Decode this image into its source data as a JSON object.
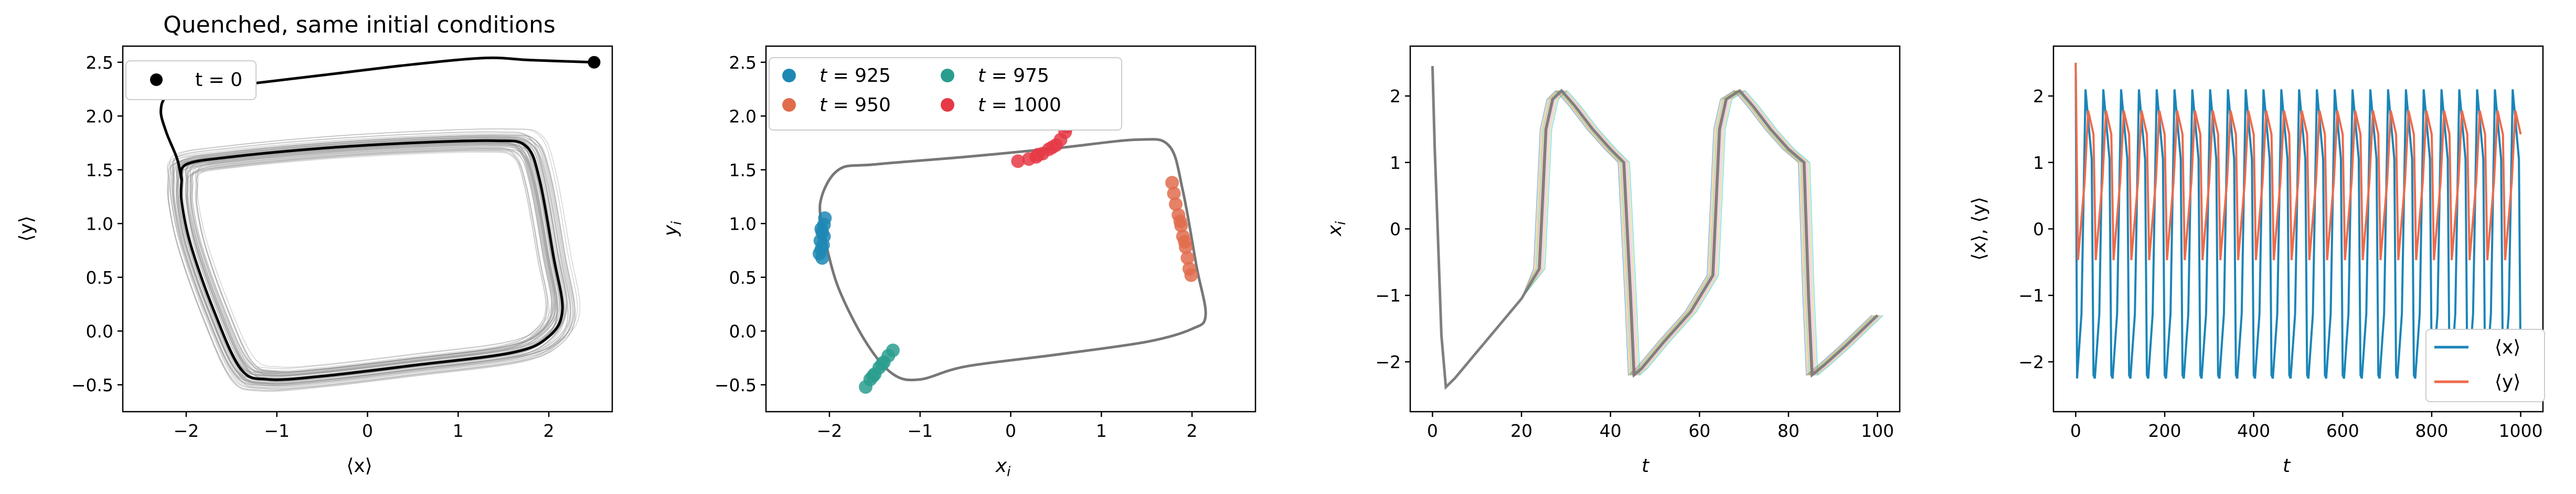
{
  "figure": {
    "panels": 4
  },
  "chart_data": [
    {
      "type": "line",
      "title": "Quenched, same initial conditions",
      "xlabel": "⟨x⟩",
      "ylabel": "⟨y⟩",
      "xlim": [
        -2.7,
        2.7
      ],
      "ylim": [
        -0.75,
        2.65
      ],
      "xticks": [
        -2,
        -1,
        0,
        1,
        2
      ],
      "yticks": [
        -0.5,
        0.0,
        0.5,
        1.0,
        1.5,
        2.0,
        2.5
      ],
      "legend": {
        "position": "top-left",
        "entries": [
          "t = 0"
        ]
      },
      "start_point": {
        "x": 2.5,
        "y": 2.5,
        "label": "t = 0",
        "color": "#000000"
      },
      "mean_trajectory": {
        "color": "#000000",
        "transient": [
          [
            2.5,
            2.5
          ],
          [
            1.8,
            2.52
          ],
          [
            1.3,
            2.54
          ],
          [
            0.5,
            2.48
          ],
          [
            -0.5,
            2.38
          ],
          [
            -1.3,
            2.3
          ],
          [
            -1.9,
            2.24
          ],
          [
            -2.2,
            2.19
          ],
          [
            -2.28,
            2.05
          ],
          [
            -2.22,
            1.85
          ],
          [
            -2.1,
            1.6
          ],
          [
            -2.05,
            1.4
          ]
        ],
        "cycle": [
          [
            -2.05,
            1.4
          ],
          [
            -2.0,
            1.55
          ],
          [
            -1.5,
            1.62
          ],
          [
            -0.5,
            1.7
          ],
          [
            0.5,
            1.75
          ],
          [
            1.4,
            1.77
          ],
          [
            1.75,
            1.72
          ],
          [
            1.9,
            1.4
          ],
          [
            2.05,
            0.7
          ],
          [
            2.15,
            0.2
          ],
          [
            2.0,
            -0.05
          ],
          [
            1.6,
            -0.2
          ],
          [
            0.5,
            -0.32
          ],
          [
            -0.5,
            -0.42
          ],
          [
            -1.1,
            -0.45
          ],
          [
            -1.4,
            -0.35
          ],
          [
            -1.7,
            0.2
          ],
          [
            -1.95,
            0.8
          ],
          [
            -2.05,
            1.2
          ],
          [
            -2.05,
            1.4
          ]
        ]
      },
      "ensemble_color": "#999999"
    },
    {
      "type": "scatter",
      "title": "",
      "xlabel": "x_i",
      "ylabel": "y_i",
      "xlim": [
        -2.7,
        2.7
      ],
      "ylim": [
        -0.75,
        2.65
      ],
      "xticks": [
        -2,
        -1,
        0,
        1,
        2
      ],
      "yticks": [
        -0.5,
        0.0,
        0.5,
        1.0,
        1.5,
        2.0,
        2.5
      ],
      "legend": {
        "position": "top-left",
        "columns": 2
      },
      "limit_cycle": {
        "color": "#777777",
        "points": [
          [
            -2.05,
            0.85
          ],
          [
            -2.1,
            1.2
          ],
          [
            -1.9,
            1.5
          ],
          [
            -1.5,
            1.55
          ],
          [
            -0.5,
            1.62
          ],
          [
            0.5,
            1.7
          ],
          [
            1.4,
            1.78
          ],
          [
            1.75,
            1.72
          ],
          [
            1.9,
            1.3
          ],
          [
            2.05,
            0.6
          ],
          [
            2.15,
            0.15
          ],
          [
            2.0,
            0.02
          ],
          [
            1.5,
            -0.1
          ],
          [
            0.5,
            -0.22
          ],
          [
            -0.5,
            -0.33
          ],
          [
            -1.0,
            -0.45
          ],
          [
            -1.3,
            -0.4
          ],
          [
            -1.6,
            -0.1
          ],
          [
            -1.9,
            0.4
          ],
          [
            -2.05,
            0.85
          ]
        ]
      },
      "series": [
        {
          "name": "t = 925",
          "label_t": "t",
          "label_val": "= 925",
          "color": "#1f87b4",
          "points": [
            [
              -2.08,
              0.68
            ],
            [
              -2.09,
              0.76
            ],
            [
              -2.1,
              0.84
            ],
            [
              -2.08,
              0.92
            ],
            [
              -2.06,
              0.99
            ],
            [
              -2.05,
              1.05
            ],
            [
              -2.11,
              0.72
            ],
            [
              -2.07,
              0.8
            ],
            [
              -2.09,
              0.95
            ],
            [
              -2.06,
              0.88
            ]
          ]
        },
        {
          "name": "t = 950",
          "label_t": "t",
          "label_val": "= 950",
          "color": "#e06c4c",
          "points": [
            [
              1.78,
              1.38
            ],
            [
              1.8,
              1.28
            ],
            [
              1.82,
              1.18
            ],
            [
              1.85,
              1.08
            ],
            [
              1.88,
              0.98
            ],
            [
              1.9,
              0.88
            ],
            [
              1.93,
              0.78
            ],
            [
              1.95,
              0.68
            ],
            [
              1.97,
              0.58
            ],
            [
              1.99,
              0.52
            ],
            [
              1.87,
              1.02
            ],
            [
              1.92,
              0.83
            ]
          ]
        },
        {
          "name": "t = 975",
          "label_t": "t",
          "label_val": "= 975",
          "color": "#2a9d8f",
          "points": [
            [
              -1.6,
              -0.52
            ],
            [
              -1.55,
              -0.45
            ],
            [
              -1.5,
              -0.4
            ],
            [
              -1.45,
              -0.34
            ],
            [
              -1.4,
              -0.29
            ],
            [
              -1.35,
              -0.23
            ],
            [
              -1.3,
              -0.18
            ],
            [
              -1.52,
              -0.42
            ],
            [
              -1.42,
              -0.31
            ]
          ]
        },
        {
          "name": "t = 1000",
          "label_t": "t",
          "label_val": "= 1000",
          "color": "#e63946",
          "points": [
            [
              0.08,
              1.58
            ],
            [
              0.2,
              1.6
            ],
            [
              0.28,
              1.62
            ],
            [
              0.35,
              1.65
            ],
            [
              0.42,
              1.69
            ],
            [
              0.5,
              1.73
            ],
            [
              0.55,
              1.78
            ],
            [
              0.6,
              1.85
            ],
            [
              0.62,
              1.9
            ],
            [
              0.3,
              1.64
            ],
            [
              0.46,
              1.71
            ]
          ]
        }
      ]
    },
    {
      "type": "line",
      "title": "",
      "xlabel": "t",
      "ylabel": "x_i",
      "xlim": [
        -5,
        105
      ],
      "ylim": [
        -2.75,
        2.75
      ],
      "xticks": [
        0,
        20,
        40,
        60,
        80,
        100
      ],
      "yticks": [
        -2,
        -1,
        0,
        1,
        2
      ],
      "mean_series": {
        "color": "#7f7f7f",
        "points": [
          [
            0,
            2.45
          ],
          [
            0.5,
            1.2
          ],
          [
            1,
            0.3
          ],
          [
            2,
            -1.6
          ],
          [
            3,
            -2.38
          ],
          [
            5,
            -2.25
          ],
          [
            10,
            -1.85
          ],
          [
            15,
            -1.45
          ],
          [
            20,
            -1.05
          ],
          [
            24,
            -0.6
          ],
          [
            25.5,
            1.5
          ],
          [
            27,
            1.95
          ],
          [
            29,
            2.08
          ],
          [
            32,
            1.85
          ],
          [
            36,
            1.5
          ],
          [
            40,
            1.2
          ],
          [
            43,
            1.0
          ],
          [
            44.5,
            -1.0
          ],
          [
            45.3,
            -2.2
          ],
          [
            47,
            -2.1
          ],
          [
            52,
            -1.7
          ],
          [
            58,
            -1.25
          ],
          [
            63,
            -0.7
          ],
          [
            64.5,
            1.5
          ],
          [
            66,
            1.95
          ],
          [
            69,
            2.08
          ],
          [
            72,
            1.85
          ],
          [
            76,
            1.5
          ],
          [
            80,
            1.2
          ],
          [
            83.5,
            1.0
          ],
          [
            84.5,
            -1.0
          ],
          [
            85.3,
            -2.2
          ],
          [
            88,
            -2.05
          ],
          [
            93,
            -1.75
          ],
          [
            100,
            -1.3
          ]
        ]
      },
      "ensemble_colors": [
        "#1f77b4",
        "#ff7f0e",
        "#2ca02c",
        "#d62728",
        "#9467bd",
        "#8c564b",
        "#e377c2",
        "#bcbd22",
        "#17becf"
      ]
    },
    {
      "type": "line",
      "title": "",
      "xlabel": "t",
      "ylabel": "⟨x⟩, ⟨y⟩",
      "xlim": [
        -50,
        1050
      ],
      "ylim": [
        -2.75,
        2.75
      ],
      "xticks": [
        0,
        200,
        400,
        600,
        800,
        1000
      ],
      "yticks": [
        -2,
        -1,
        0,
        1,
        2
      ],
      "legend": {
        "position": "bottom-right",
        "entries": [
          "⟨x⟩",
          "⟨y⟩"
        ]
      },
      "series": [
        {
          "name": "⟨x⟩",
          "color": "#1b85b8",
          "period": 40,
          "initial": 2.5,
          "max": 2.1,
          "min": -2.25
        },
        {
          "name": "⟨y⟩",
          "color": "#ee6a4b",
          "period": 40,
          "initial": 2.5,
          "max": 1.78,
          "min": -0.47
        }
      ]
    }
  ]
}
